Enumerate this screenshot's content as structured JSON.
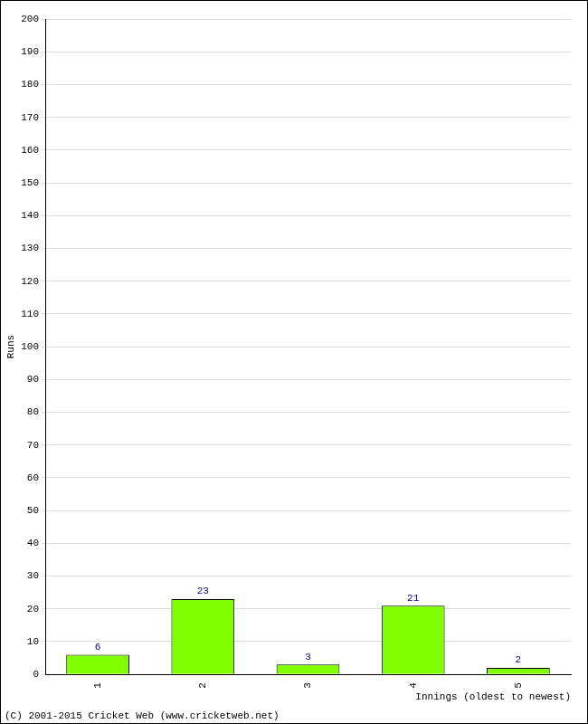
{
  "chart_data": {
    "type": "bar",
    "categories": [
      "1",
      "2",
      "3",
      "4",
      "5"
    ],
    "values": [
      6,
      23,
      3,
      21,
      2
    ],
    "color": "#80ff00",
    "x_label": "Innings (oldest to newest)",
    "y_label": "Runs",
    "annotations": [
      "(C) 2001-2015 Cricket Web (www.cricketweb.net)"
    ],
    "ylim": [
      0,
      200
    ],
    "yticks": [
      0,
      10,
      20,
      30,
      40,
      50,
      60,
      70,
      80,
      90,
      100,
      110,
      120,
      130,
      140,
      150,
      160,
      170,
      180,
      190,
      200
    ],
    "grid": true,
    "data_labels": true
  }
}
